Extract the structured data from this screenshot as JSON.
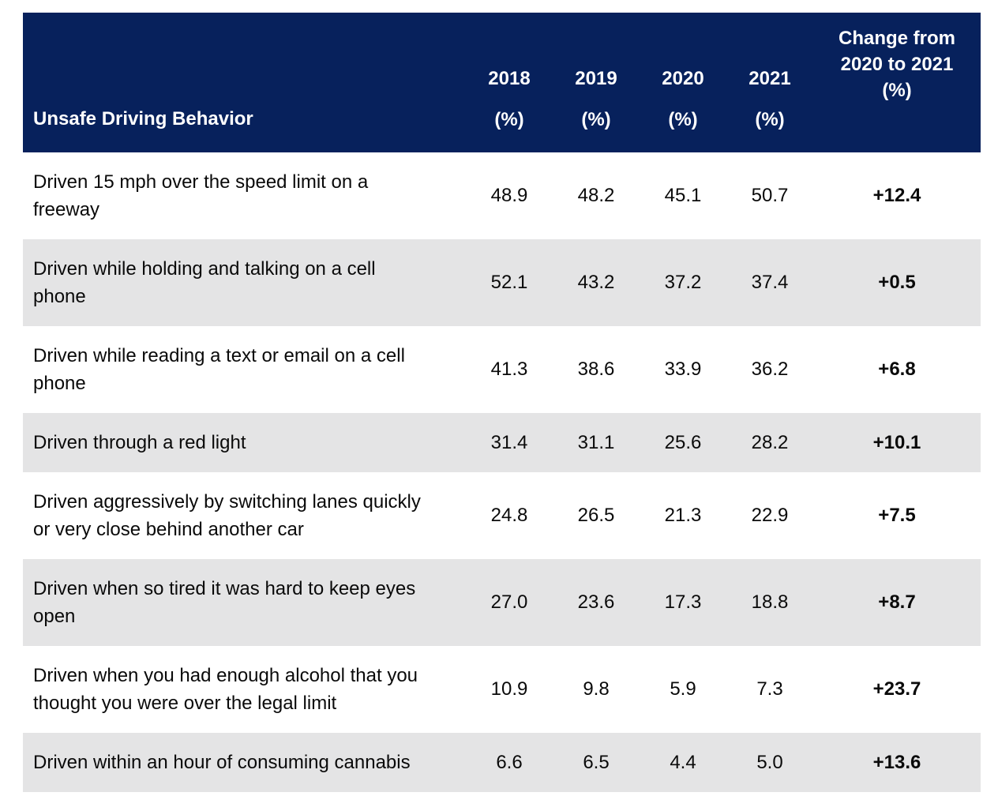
{
  "colors": {
    "header_bg": "#07215c",
    "header_text": "#ffffff",
    "row_alt_bg": "#e4e4e5",
    "row_bg": "#ffffff",
    "body_text": "#0a0a0a"
  },
  "table": {
    "header": {
      "behavior_label": "Unsafe Driving Behavior",
      "years": [
        {
          "year": "2018",
          "unit": "(%)"
        },
        {
          "year": "2019",
          "unit": "(%)"
        },
        {
          "year": "2020",
          "unit": "(%)"
        },
        {
          "year": "2021",
          "unit": "(%)"
        }
      ],
      "change": {
        "line1": "Change from",
        "line2": "2020 to 2021",
        "line3": "(%)"
      }
    },
    "rows": [
      {
        "behavior": "Driven 15 mph over the speed limit on a freeway",
        "v2018": "48.9",
        "v2019": "48.2",
        "v2020": "45.1",
        "v2021": "50.7",
        "change": "+12.4"
      },
      {
        "behavior": "Driven while holding and talking on a cell phone",
        "v2018": "52.1",
        "v2019": "43.2",
        "v2020": "37.2",
        "v2021": "37.4",
        "change": "+0.5"
      },
      {
        "behavior": "Driven while reading a text or email on a cell phone",
        "v2018": "41.3",
        "v2019": "38.6",
        "v2020": "33.9",
        "v2021": "36.2",
        "change": "+6.8"
      },
      {
        "behavior": "Driven through a red light",
        "v2018": "31.4",
        "v2019": "31.1",
        "v2020": "25.6",
        "v2021": "28.2",
        "change": "+10.1"
      },
      {
        "behavior": "Driven aggressively by switching lanes quickly or very close behind another car",
        "v2018": "24.8",
        "v2019": "26.5",
        "v2020": "21.3",
        "v2021": "22.9",
        "change": "+7.5"
      },
      {
        "behavior": "Driven when so tired it was hard to keep eyes open",
        "v2018": "27.0",
        "v2019": "23.6",
        "v2020": "17.3",
        "v2021": "18.8",
        "change": "+8.7"
      },
      {
        "behavior": "Driven when you had enough alcohol that you thought you were over the legal limit",
        "v2018": "10.9",
        "v2019": "9.8",
        "v2020": "5.9",
        "v2021": "7.3",
        "change": "+23.7"
      },
      {
        "behavior": "Driven within an hour of consuming cannabis",
        "v2018": "6.6",
        "v2019": "6.5",
        "v2020": "4.4",
        "v2021": "5.0",
        "change": "+13.6"
      }
    ]
  },
  "chart_data": {
    "type": "table",
    "title": "Unsafe Driving Behavior by year (%)",
    "columns": [
      "Unsafe Driving Behavior",
      "2018 (%)",
      "2019 (%)",
      "2020 (%)",
      "2021 (%)",
      "Change from 2020 to 2021 (%)"
    ],
    "rows": [
      [
        "Driven 15 mph over the speed limit on a freeway",
        48.9,
        48.2,
        45.1,
        50.7,
        "+12.4"
      ],
      [
        "Driven while holding and talking on a cell phone",
        52.1,
        43.2,
        37.2,
        37.4,
        "+0.5"
      ],
      [
        "Driven while reading a text or email on a cell phone",
        41.3,
        38.6,
        33.9,
        36.2,
        "+6.8"
      ],
      [
        "Driven through a red light",
        31.4,
        31.1,
        25.6,
        28.2,
        "+10.1"
      ],
      [
        "Driven aggressively by switching lanes quickly or very close behind another car",
        24.8,
        26.5,
        21.3,
        22.9,
        "+7.5"
      ],
      [
        "Driven when so tired it was hard to keep eyes open",
        27.0,
        23.6,
        17.3,
        18.8,
        "+8.7"
      ],
      [
        "Driven when you had enough alcohol that you thought you were over the legal limit",
        10.9,
        9.8,
        5.9,
        7.3,
        "+23.7"
      ],
      [
        "Driven within an hour of consuming cannabis",
        6.6,
        6.5,
        4.4,
        5.0,
        "+13.6"
      ]
    ]
  }
}
